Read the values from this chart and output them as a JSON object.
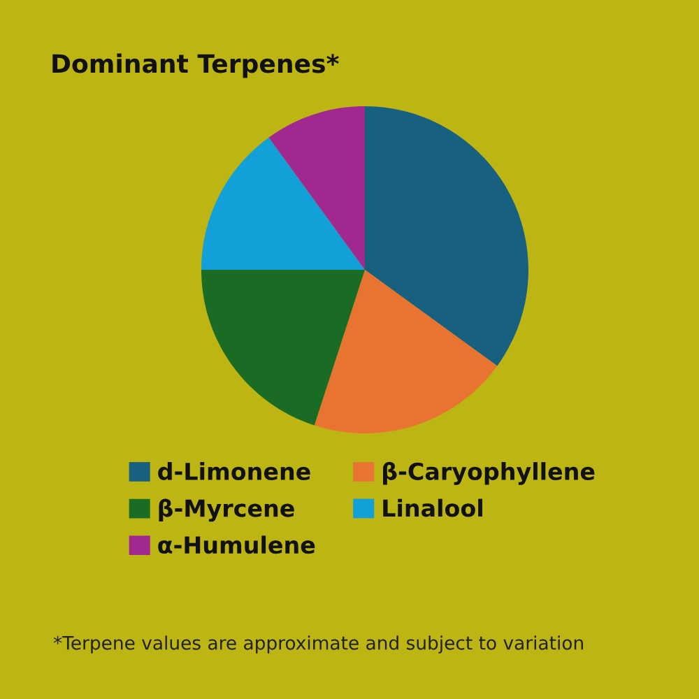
{
  "chart_data": {
    "type": "pie",
    "title": "Dominant Terpenes*",
    "categories": [
      "d-Limonene",
      "β-Caryophyllene",
      "β-Myrcene",
      "Linalool",
      "α-Humulene"
    ],
    "values": [
      35,
      20,
      20,
      15,
      10
    ],
    "colors": [
      "#17607f",
      "#e97432",
      "#1a6b23",
      "#11a0d8",
      "#a0288f"
    ],
    "legend": "bottom",
    "annotations": [
      "*Terpene values are approximate and subject to variation"
    ]
  }
}
